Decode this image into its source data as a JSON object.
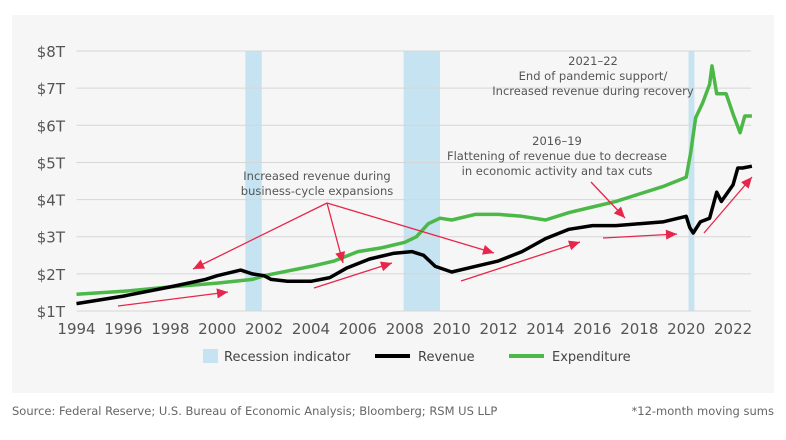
{
  "chart_data": {
    "type": "line",
    "title": "",
    "xlabel": "",
    "ylabel": "",
    "xlim": [
      1994,
      2022.8
    ],
    "ylim": [
      1,
      8
    ],
    "grid": true,
    "legend_position": "bottom",
    "x_ticks": [
      "1994",
      "1996",
      "1998",
      "2000",
      "2002",
      "2004",
      "2006",
      "2008",
      "2010",
      "2012",
      "2014",
      "2016",
      "2018",
      "2020",
      "2022"
    ],
    "y_ticks": [
      "$1T",
      "$2T",
      "$3T",
      "$4T",
      "$5T",
      "$6T",
      "$7T",
      "$8T"
    ],
    "recessions": [
      {
        "start": 2001.2,
        "end": 2001.9
      },
      {
        "start": 2007.95,
        "end": 2009.5
      },
      {
        "start": 2020.1,
        "end": 2020.35
      }
    ],
    "series": [
      {
        "name": "Revenue",
        "color": "#000000",
        "x": [
          1994,
          1996,
          1998,
          1999.5,
          2000,
          2001,
          2001.5,
          2002,
          2002.3,
          2003,
          2004,
          2004.8,
          2005.5,
          2006.5,
          2007.5,
          2008.3,
          2008.8,
          2009.3,
          2010,
          2011,
          2012,
          2013,
          2014,
          2015,
          2016,
          2017,
          2018,
          2019,
          2020,
          2020.15,
          2020.3,
          2020.6,
          2021,
          2021.3,
          2021.5,
          2022,
          2022.2,
          2022.4,
          2022.8
        ],
        "y": [
          1.2,
          1.4,
          1.65,
          1.85,
          1.95,
          2.1,
          2.0,
          1.95,
          1.85,
          1.8,
          1.8,
          1.9,
          2.15,
          2.4,
          2.55,
          2.6,
          2.5,
          2.2,
          2.05,
          2.2,
          2.35,
          2.6,
          2.95,
          3.2,
          3.3,
          3.3,
          3.35,
          3.4,
          3.55,
          3.25,
          3.1,
          3.4,
          3.5,
          4.2,
          3.95,
          4.4,
          4.85,
          4.85,
          4.9
        ]
      },
      {
        "name": "Expenditure",
        "color": "#4cb848",
        "x": [
          1994,
          1996,
          1998,
          2000,
          2001.5,
          2002,
          2004,
          2005,
          2006,
          2007,
          2008,
          2008.5,
          2009,
          2009.5,
          2010,
          2011,
          2012,
          2013,
          2014,
          2015,
          2016,
          2017,
          2018,
          2019,
          2020,
          2020.2,
          2020.4,
          2020.7,
          2021,
          2021.1,
          2021.3,
          2021.7,
          2022,
          2022.3,
          2022.5,
          2022.8
        ],
        "y": [
          1.45,
          1.53,
          1.65,
          1.75,
          1.85,
          1.95,
          2.2,
          2.35,
          2.6,
          2.7,
          2.85,
          3.0,
          3.35,
          3.5,
          3.45,
          3.6,
          3.6,
          3.55,
          3.45,
          3.65,
          3.8,
          3.95,
          4.15,
          4.35,
          4.6,
          5.3,
          6.2,
          6.6,
          7.1,
          7.6,
          6.85,
          6.85,
          6.3,
          5.8,
          6.25,
          6.25
        ]
      }
    ],
    "annotations": {
      "expansions": [
        "Increased revenue during",
        "business-cycle expansions"
      ],
      "flattening": [
        "2016–19",
        "Flattening of revenue due to decrease",
        "in economic activity and tax cuts"
      ],
      "recovery": [
        "2021–22",
        "End of pandemic support/",
        "Increased revenue during recovery"
      ]
    },
    "legend": {
      "recession": "Recession indicator",
      "revenue": "Revenue",
      "expenditure": "Expenditure"
    },
    "colors": {
      "recession": "#c5e3f1",
      "arrow": "#e8254a",
      "grid": "#d6d6d6"
    }
  },
  "footer": {
    "source": "Source: Federal Reserve; U.S. Bureau of Economic Analysis; Bloomberg; RSM US LLP",
    "note": "*12-month moving sums"
  }
}
